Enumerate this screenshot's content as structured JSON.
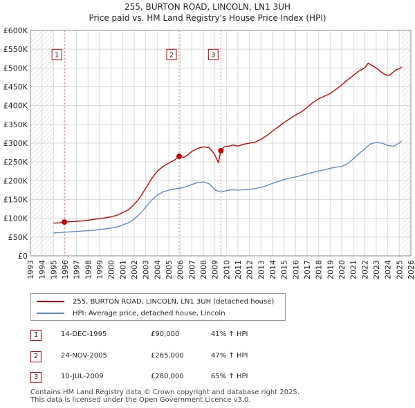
{
  "chart_data": {
    "type": "line",
    "title": "255, BURTON ROAD, LINCOLN, LN1 3UH",
    "subtitle": "Price paid vs. HM Land Registry's House Price Index (HPI)",
    "xlabel": "",
    "ylabel": "",
    "xlim": [
      1993,
      2026
    ],
    "ylim": [
      0,
      600000
    ],
    "x_ticks": [
      1993,
      1994,
      1995,
      1996,
      1997,
      1998,
      1999,
      2000,
      2001,
      2002,
      2003,
      2004,
      2005,
      2006,
      2007,
      2008,
      2009,
      2010,
      2011,
      2012,
      2013,
      2014,
      2015,
      2016,
      2017,
      2018,
      2019,
      2020,
      2021,
      2022,
      2023,
      2024,
      2025,
      2026
    ],
    "y_ticks": [
      0,
      50000,
      100000,
      150000,
      200000,
      250000,
      300000,
      350000,
      400000,
      450000,
      500000,
      550000,
      600000
    ],
    "y_tick_labels": [
      "£0",
      "£50K",
      "£100K",
      "£150K",
      "£200K",
      "£250K",
      "£300K",
      "£350K",
      "£400K",
      "£450K",
      "£500K",
      "£550K",
      "£600K"
    ],
    "grid": true,
    "hatched_ranges": [
      [
        1993,
        1995.0
      ],
      [
        2025.2,
        2026
      ]
    ],
    "series": [
      {
        "name": "255, BURTON ROAD, LINCOLN, LN1 3UH (detached house)",
        "color": "#cc0000",
        "x": [
          1995.0,
          1995.5,
          1995.95,
          1996.5,
          1997,
          1997.5,
          1998,
          1998.5,
          1999,
          1999.5,
          2000,
          2000.5,
          2001,
          2001.5,
          2002,
          2002.5,
          2003,
          2003.5,
          2004,
          2004.5,
          2005,
          2005.5,
          2005.9,
          2006.3,
          2006.7,
          2007,
          2007.5,
          2008,
          2008.5,
          2008.8,
          2009.0,
          2009.2,
          2009.3,
          2009.52,
          2009.8,
          2010.2,
          2010.6,
          2011,
          2011.5,
          2012,
          2012.5,
          2013,
          2013.5,
          2014,
          2014.5,
          2015,
          2015.5,
          2016,
          2016.5,
          2017,
          2017.5,
          2018,
          2018.5,
          2019,
          2019.5,
          2020,
          2020.5,
          2021,
          2021.5,
          2022,
          2022.3,
          2022.6,
          2022.9,
          2023.2,
          2023.5,
          2023.8,
          2024.1,
          2024.4,
          2024.7,
          2025.0,
          2025.2
        ],
        "values": [
          87000,
          88000,
          90000,
          91000,
          92000,
          93000,
          95000,
          97000,
          99000,
          101000,
          104000,
          108000,
          115000,
          123000,
          137000,
          155000,
          180000,
          205000,
          225000,
          238000,
          247000,
          255000,
          265000,
          262000,
          270000,
          278000,
          286000,
          290000,
          288000,
          278000,
          268000,
          255000,
          248000,
          280000,
          290000,
          292000,
          295000,
          292000,
          297000,
          300000,
          303000,
          310000,
          320000,
          332000,
          343000,
          355000,
          365000,
          375000,
          383000,
          395000,
          408000,
          418000,
          425000,
          432000,
          443000,
          455000,
          468000,
          480000,
          492000,
          500000,
          513000,
          507000,
          502000,
          495000,
          488000,
          482000,
          480000,
          487000,
          495000,
          498000,
          503000
        ]
      },
      {
        "name": "HPI: Average price, detached house, Lincoln",
        "color": "#5b8ac8",
        "x": [
          1995.0,
          1995.5,
          1996,
          1996.5,
          1997,
          1997.5,
          1998,
          1998.5,
          1999,
          1999.5,
          2000,
          2000.5,
          2001,
          2001.5,
          2002,
          2002.5,
          2003,
          2003.5,
          2004,
          2004.5,
          2005,
          2005.5,
          2006,
          2006.5,
          2007,
          2007.5,
          2008,
          2008.5,
          2008.8,
          2009.0,
          2009.3,
          2009.6,
          2010,
          2010.5,
          2011,
          2011.5,
          2012,
          2012.5,
          2013,
          2013.5,
          2014,
          2014.5,
          2015,
          2015.5,
          2016,
          2016.5,
          2017,
          2017.5,
          2018,
          2018.5,
          2019,
          2019.5,
          2020,
          2020.5,
          2021,
          2021.5,
          2022,
          2022.5,
          2023,
          2023.5,
          2024,
          2024.5,
          2025.0,
          2025.2
        ],
        "values": [
          61000,
          62000,
          63000,
          64000,
          65000,
          66000,
          67000,
          68000,
          70000,
          72000,
          74000,
          77000,
          82000,
          88000,
          98000,
          112000,
          130000,
          148000,
          162000,
          170000,
          175000,
          178000,
          180000,
          184000,
          190000,
          195000,
          197000,
          192000,
          183000,
          175000,
          172000,
          170000,
          174000,
          176000,
          175000,
          176000,
          177000,
          179000,
          182000,
          187000,
          193000,
          198000,
          203000,
          207000,
          210000,
          214000,
          218000,
          222000,
          226000,
          229000,
          233000,
          236000,
          238000,
          245000,
          258000,
          272000,
          285000,
          298000,
          302000,
          300000,
          294000,
          292000,
          300000,
          306000
        ]
      }
    ],
    "sale_markers": [
      {
        "label": "1",
        "year": 1995.95,
        "price": 90000
      },
      {
        "label": "2",
        "year": 2005.9,
        "price": 265000
      },
      {
        "label": "3",
        "year": 2009.52,
        "price": 280000
      }
    ],
    "marker_labels_y_value": 535000
  },
  "legend": {
    "items": [
      {
        "label": "255, BURTON ROAD, LINCOLN, LN1 3UH (detached house)",
        "color": "#cc0000"
      },
      {
        "label": "HPI: Average price, detached house, Lincoln",
        "color": "#5b8ac8"
      }
    ]
  },
  "transactions": [
    {
      "num": "1",
      "date": "14-DEC-1995",
      "price": "£90,000",
      "hpi": "41% ↑ HPI"
    },
    {
      "num": "2",
      "date": "24-NOV-2005",
      "price": "£265,000",
      "hpi": "47% ↑ HPI"
    },
    {
      "num": "3",
      "date": "10-JUL-2009",
      "price": "£280,000",
      "hpi": "65% ↑ HPI"
    }
  ],
  "footer": {
    "line1": "Contains HM Land Registry data © Crown copyright and database right 2025.",
    "line2": "This data is licensed under the Open Government Licence v3.0."
  }
}
